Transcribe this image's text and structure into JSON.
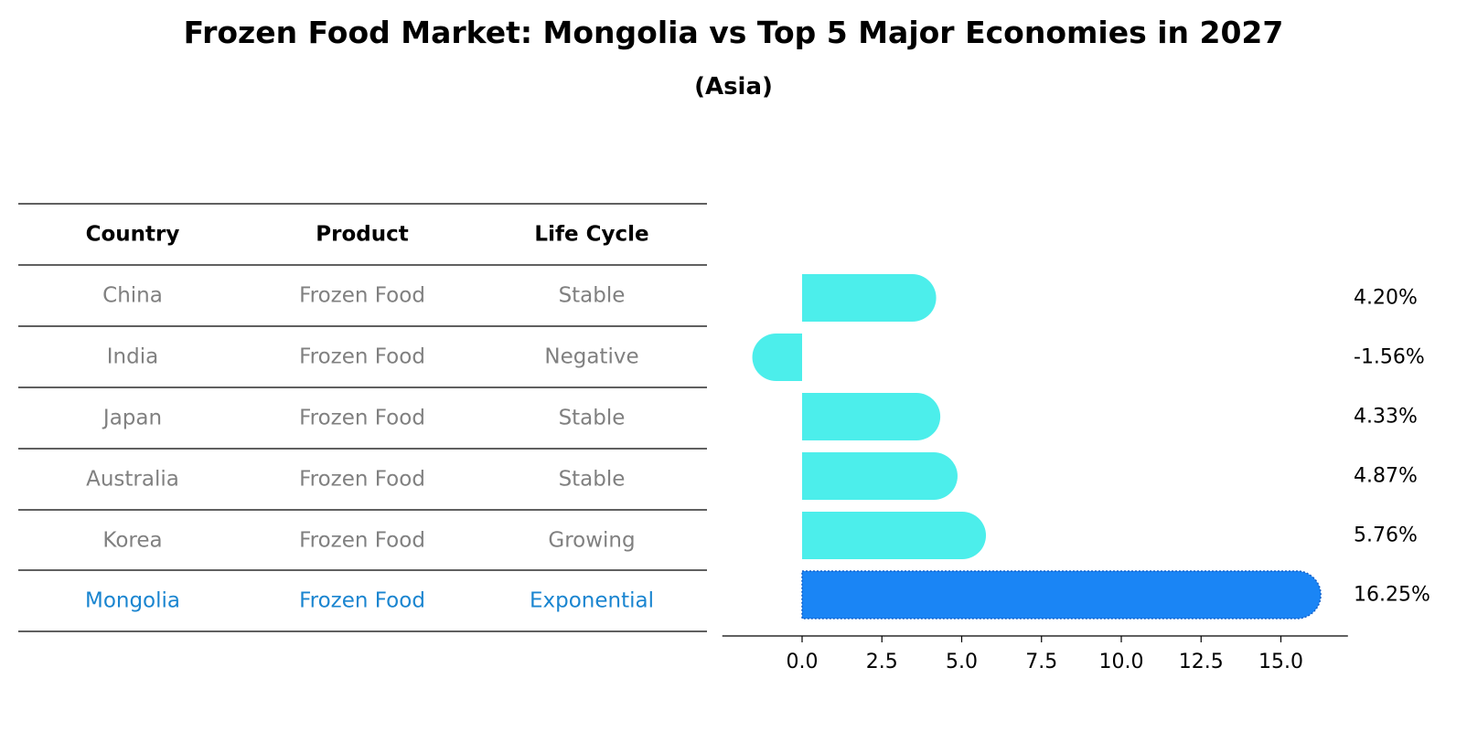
{
  "title": "Frozen Food Market: Mongolia vs Top 5 Major Economies in 2027",
  "subtitle": "(Asia)",
  "table": {
    "headers": [
      "Country",
      "Product",
      "Life Cycle"
    ],
    "rows": [
      [
        "China",
        "Frozen Food",
        "Stable"
      ],
      [
        "India",
        "Frozen Food",
        "Negative"
      ],
      [
        "Japan",
        "Frozen Food",
        "Stable"
      ],
      [
        "Australia",
        "Frozen Food",
        "Stable"
      ],
      [
        "Korea",
        "Frozen Food",
        "Growing"
      ],
      [
        "Mongolia",
        "Frozen Food",
        "Exponential"
      ]
    ],
    "highlight_row": 5
  },
  "colors": {
    "bar": "#4ceeeb",
    "highlight_bar": "#1a85f5",
    "row_text": "#808080",
    "highlight_text": "#1a85d0"
  },
  "chart_data": {
    "type": "bar",
    "orientation": "horizontal",
    "categories": [
      "China",
      "India",
      "Japan",
      "Australia",
      "Korea",
      "Mongolia"
    ],
    "values": [
      4.2,
      -1.56,
      4.33,
      4.87,
      5.76,
      16.25
    ],
    "value_labels": [
      "4.20%",
      "-1.56%",
      "4.33%",
      "4.87%",
      "5.76%",
      "16.25%"
    ],
    "xticks": [
      0.0,
      2.5,
      5.0,
      7.5,
      10.0,
      12.5,
      15.0
    ],
    "xtick_labels": [
      "0.0",
      "2.5",
      "5.0",
      "7.5",
      "10.0",
      "12.5",
      "15.0"
    ],
    "xlim": [
      -2.5,
      17.1
    ],
    "xlabel": "",
    "ylabel": "",
    "grid": false,
    "highlight_category": "Mongolia"
  }
}
